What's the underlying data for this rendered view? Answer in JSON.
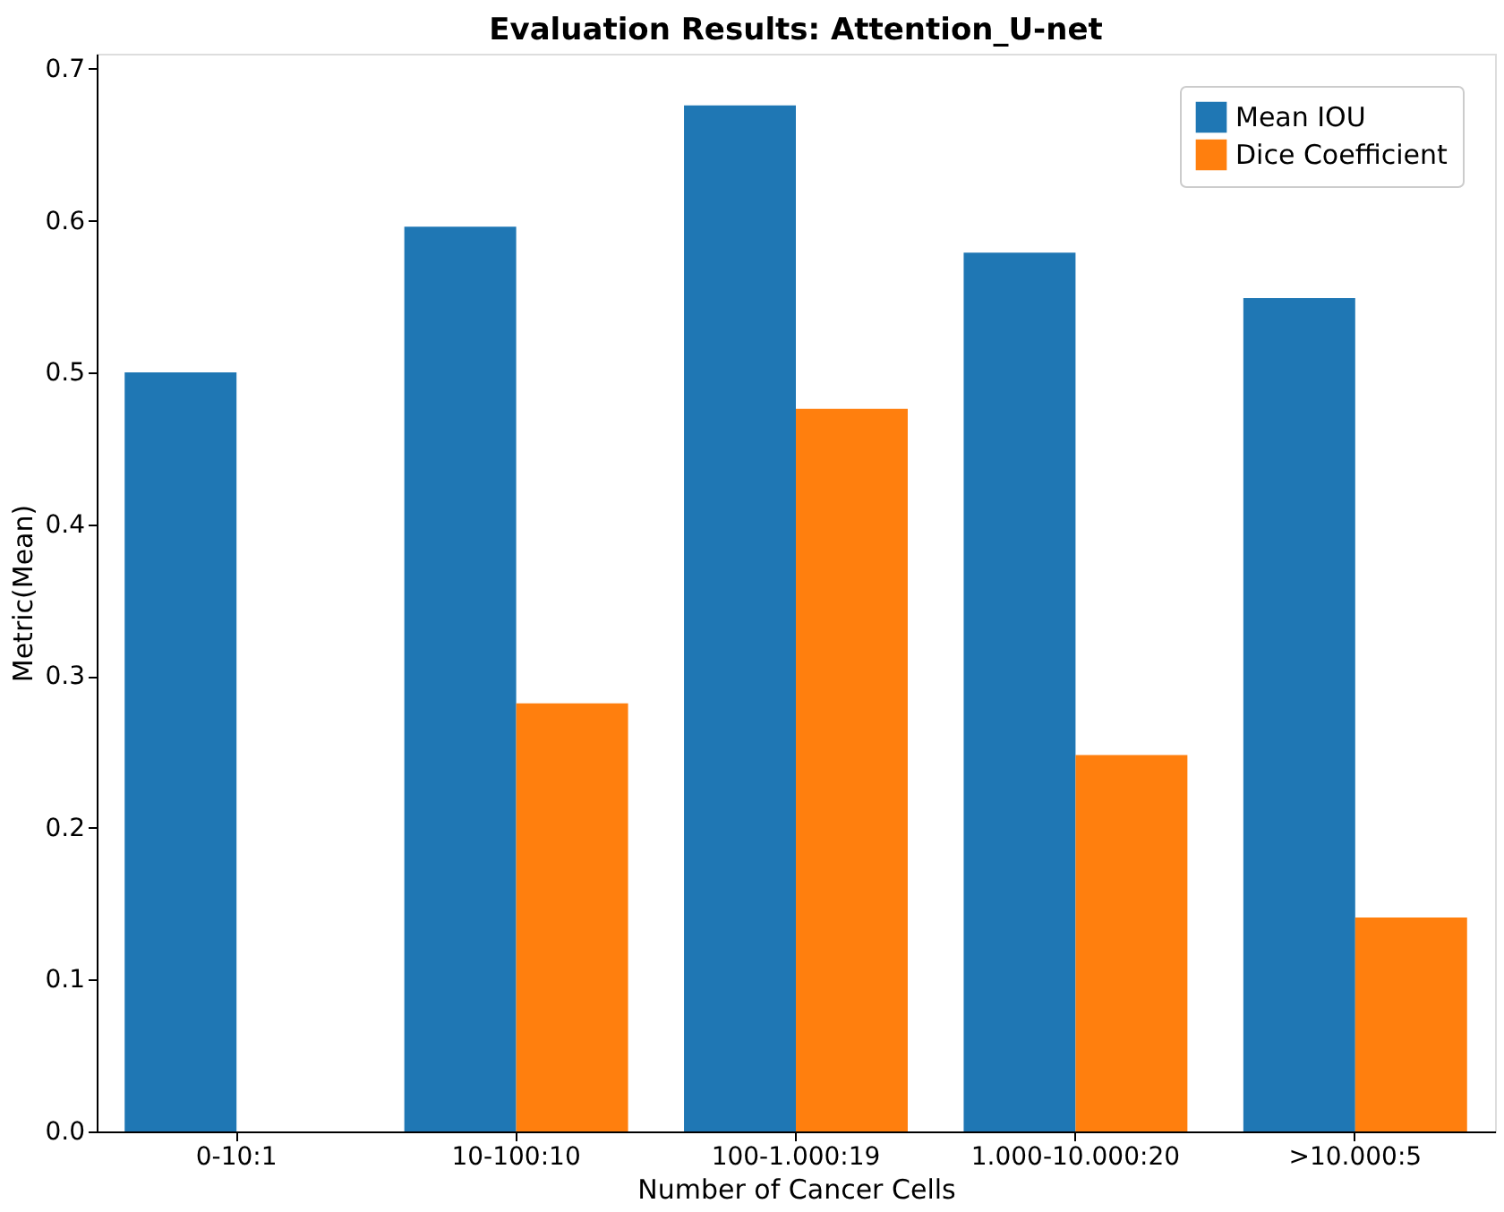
{
  "chart_data": {
    "type": "bar",
    "title": "Evaluation Results: Attention_U-net",
    "xlabel": "Number of Cancer Cells",
    "ylabel": "Metric(Mean)",
    "categories": [
      "0-10:1",
      "10-100:10",
      "100-1.000:19",
      "1.000-10.000:20",
      ">10.000:5"
    ],
    "series": [
      {
        "name": "Mean IOU",
        "color": "#1f77b4",
        "values": [
          0.5,
          0.596,
          0.676,
          0.579,
          0.549
        ]
      },
      {
        "name": "Dice Coefficient",
        "color": "#ff7f0e",
        "values": [
          0.0,
          0.282,
          0.476,
          0.248,
          0.141
        ]
      }
    ],
    "ylim": [
      0,
      0.71
    ],
    "yticks": [
      {
        "value": 0,
        "label": "0.0"
      },
      {
        "value": 0.1,
        "label": "0.1"
      },
      {
        "value": 0.2,
        "label": "0.2"
      },
      {
        "value": 0.3,
        "label": "0.3"
      },
      {
        "value": 0.4,
        "label": "0.4"
      },
      {
        "value": 0.5,
        "label": "0.5"
      },
      {
        "value": 0.6,
        "label": "0.6"
      },
      {
        "value": 0.7,
        "label": "0.7"
      }
    ],
    "grid": false,
    "legend": "top right"
  }
}
